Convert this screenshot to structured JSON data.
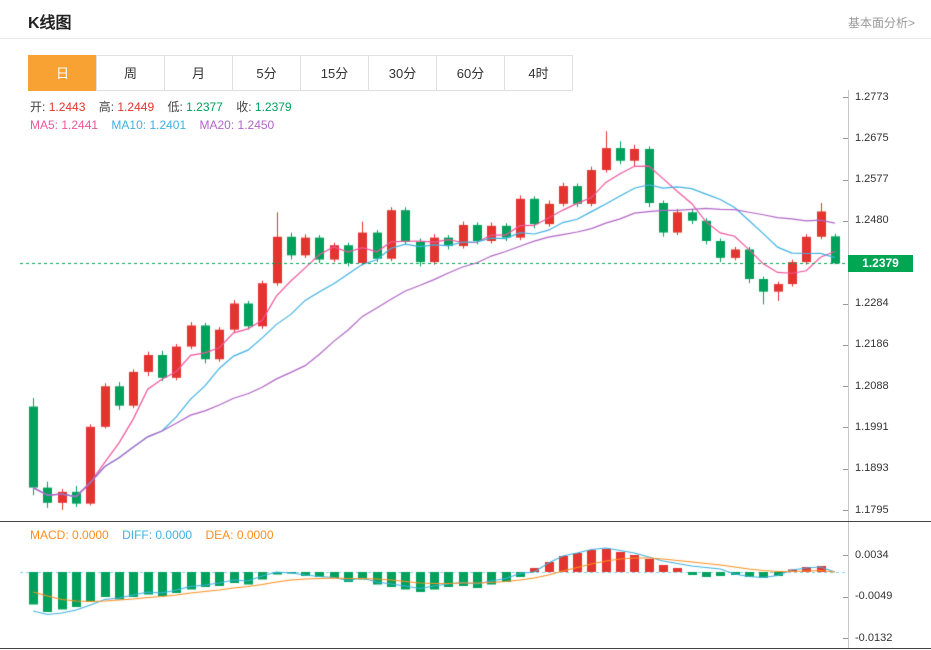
{
  "page": {
    "title": "K线图",
    "analysis_link": "基本面分析>"
  },
  "tabs": [
    {
      "label": "日",
      "active": true
    },
    {
      "label": "周",
      "active": false
    },
    {
      "label": "月",
      "active": false
    },
    {
      "label": "5分",
      "active": false
    },
    {
      "label": "15分",
      "active": false
    },
    {
      "label": "30分",
      "active": false
    },
    {
      "label": "60分",
      "active": false
    },
    {
      "label": "4时",
      "active": false
    }
  ],
  "overlay": {
    "open_label": "开:",
    "open_value": "1.2443",
    "high_label": "高:",
    "high_value": "1.2449",
    "low_label": "低:",
    "low_value": "1.2377",
    "close_label": "收:",
    "close_value": "1.2379",
    "ma5_label": "MA5:",
    "ma5_value": "1.2441",
    "ma10_label": "MA10:",
    "ma10_value": "1.2401",
    "ma20_label": "MA20:",
    "ma20_value": "1.2450"
  },
  "macd_overlay": {
    "macd_label": "MACD:",
    "macd_value": "0.0000",
    "diff_label": "DIFF:",
    "diff_value": "0.0000",
    "dea_label": "DEA:",
    "dea_value": "0.0000"
  },
  "price_badge": "1.2379",
  "colors": {
    "up_red": "#e3342f",
    "down_green": "#00a15c",
    "ma5_pink": "#f0559d",
    "ma10_blue": "#3fb1e3",
    "ma20_purple": "#b066c6",
    "macd_orange": "#ff8f1f",
    "diff_blue": "#3fb1e3",
    "badge_green": "#00a651",
    "tab_active_bg": "#f7a232",
    "zero_line_blue": "#7fd0ec"
  },
  "chart_data": {
    "type": "candlestick",
    "title": "K线图",
    "timeframe_selected": "日",
    "grid": false,
    "legend_position": "none",
    "price_axis_ticks": [
      "1.2773",
      "1.2675",
      "1.2577",
      "1.2480",
      "1.2284",
      "1.2186",
      "1.2088",
      "1.1991",
      "1.1893",
      "1.1795"
    ],
    "macd_axis_ticks": [
      "0.0034",
      "-0.0049",
      "-0.0132"
    ],
    "price_range": [
      1.1795,
      1.2773
    ],
    "current_price": 1.2379,
    "last_candle": {
      "open": 1.2443,
      "high": 1.2449,
      "low": 1.2377,
      "close": 1.2379
    },
    "ma_periods": [
      5,
      10,
      20
    ],
    "candles": [
      [
        1.204,
        1.206,
        1.183,
        1.1848
      ],
      [
        1.1848,
        1.1862,
        1.18,
        1.1812
      ],
      [
        1.1812,
        1.1845,
        1.1795,
        1.1838
      ],
      [
        1.1838,
        1.1852,
        1.1802,
        1.181
      ],
      [
        1.181,
        1.1998,
        1.1806,
        1.1992
      ],
      [
        1.1992,
        1.2095,
        1.1988,
        1.2088
      ],
      [
        1.2088,
        1.2098,
        1.2032,
        1.2042
      ],
      [
        1.2042,
        1.2128,
        1.2036,
        1.2122
      ],
      [
        1.2122,
        1.217,
        1.2112,
        1.2162
      ],
      [
        1.2162,
        1.2172,
        1.21,
        1.2108
      ],
      [
        1.2108,
        1.2188,
        1.2102,
        1.2182
      ],
      [
        1.2182,
        1.224,
        1.2176,
        1.2232
      ],
      [
        1.2232,
        1.2238,
        1.2142,
        1.2152
      ],
      [
        1.2152,
        1.2228,
        1.2146,
        1.2222
      ],
      [
        1.2222,
        1.2292,
        1.2216,
        1.2284
      ],
      [
        1.2284,
        1.229,
        1.2222,
        1.223
      ],
      [
        1.223,
        1.2338,
        1.2224,
        1.2332
      ],
      [
        1.2332,
        1.25,
        1.2326,
        1.2442
      ],
      [
        1.2442,
        1.2452,
        1.2388,
        1.2398
      ],
      [
        1.2398,
        1.2448,
        1.2392,
        1.244
      ],
      [
        1.244,
        1.2446,
        1.238,
        1.2388
      ],
      [
        1.2388,
        1.2428,
        1.2382,
        1.2422
      ],
      [
        1.2422,
        1.2428,
        1.2372,
        1.238
      ],
      [
        1.238,
        1.2478,
        1.2374,
        1.2452
      ],
      [
        1.2452,
        1.2458,
        1.2382,
        1.239
      ],
      [
        1.239,
        1.2512,
        1.2384,
        1.2505
      ],
      [
        1.2505,
        1.2512,
        1.2422,
        1.243
      ],
      [
        1.243,
        1.2438,
        1.2372,
        1.2382
      ],
      [
        1.2382,
        1.2448,
        1.2376,
        1.244
      ],
      [
        1.244,
        1.2446,
        1.2412,
        1.242
      ],
      [
        1.242,
        1.2478,
        1.2414,
        1.247
      ],
      [
        1.247,
        1.2476,
        1.2424,
        1.2432
      ],
      [
        1.2432,
        1.2476,
        1.2426,
        1.2468
      ],
      [
        1.2468,
        1.2474,
        1.2432,
        1.244
      ],
      [
        1.244,
        1.254,
        1.2434,
        1.2532
      ],
      [
        1.2532,
        1.2538,
        1.2462,
        1.2472
      ],
      [
        1.2472,
        1.2528,
        1.2466,
        1.252
      ],
      [
        1.252,
        1.257,
        1.2514,
        1.2562
      ],
      [
        1.2562,
        1.2568,
        1.2512,
        1.252
      ],
      [
        1.252,
        1.2608,
        1.2514,
        1.26
      ],
      [
        1.26,
        1.2692,
        1.2594,
        1.2652
      ],
      [
        1.2652,
        1.2668,
        1.2614,
        1.2622
      ],
      [
        1.2622,
        1.266,
        1.2608,
        1.265
      ],
      [
        1.265,
        1.2656,
        1.2512,
        1.2522
      ],
      [
        1.2522,
        1.2528,
        1.2442,
        1.2452
      ],
      [
        1.2452,
        1.2508,
        1.2446,
        1.25
      ],
      [
        1.25,
        1.2506,
        1.2472,
        1.248
      ],
      [
        1.248,
        1.2486,
        1.2424,
        1.2432
      ],
      [
        1.2432,
        1.2438,
        1.2382,
        1.2392
      ],
      [
        1.2392,
        1.2418,
        1.2386,
        1.2412
      ],
      [
        1.2412,
        1.2418,
        1.2332,
        1.2342
      ],
      [
        1.2342,
        1.2348,
        1.2282,
        1.2312
      ],
      [
        1.2312,
        1.2336,
        1.229,
        1.233
      ],
      [
        1.233,
        1.2388,
        1.2324,
        1.2382
      ],
      [
        1.2382,
        1.2448,
        1.2376,
        1.2442
      ],
      [
        1.2442,
        1.2522,
        1.2436,
        1.2502
      ],
      [
        1.2443,
        1.2449,
        1.2377,
        1.2379
      ]
    ],
    "macd": {
      "hist": [
        -0.0065,
        -0.008,
        -0.0075,
        -0.007,
        -0.006,
        -0.005,
        -0.0055,
        -0.005,
        -0.0045,
        -0.0048,
        -0.0042,
        -0.0035,
        -0.003,
        -0.0028,
        -0.0022,
        -0.0025,
        -0.0015,
        -0.0005,
        -0.0003,
        -0.0008,
        -0.001,
        -0.0012,
        -0.002,
        -0.0015,
        -0.0025,
        -0.003,
        -0.0035,
        -0.004,
        -0.0035,
        -0.003,
        -0.0028,
        -0.0032,
        -0.0025,
        -0.002,
        -0.001,
        0.0008,
        0.002,
        0.0032,
        0.0038,
        0.0044,
        0.0046,
        0.004,
        0.0034,
        0.0026,
        0.0014,
        0.0008,
        -0.0006,
        -0.001,
        -0.0008,
        -0.0006,
        -0.001,
        -0.0012,
        -0.0008,
        0.0005,
        0.001,
        0.0012,
        0.0
      ],
      "diff": [
        -0.0078,
        -0.0085,
        -0.0082,
        -0.0076,
        -0.0066,
        -0.0055,
        -0.0052,
        -0.0046,
        -0.004,
        -0.0042,
        -0.0036,
        -0.0029,
        -0.0026,
        -0.0022,
        -0.0016,
        -0.0018,
        -0.0008,
        0.0,
        -0.0002,
        -0.0006,
        -0.0009,
        -0.0011,
        -0.0017,
        -0.0012,
        -0.002,
        -0.0024,
        -0.0028,
        -0.0033,
        -0.0028,
        -0.0024,
        -0.0021,
        -0.0024,
        -0.0018,
        -0.0013,
        -0.0003,
        0.0,
        0.0018,
        0.0032,
        0.0038,
        0.0045,
        0.0048,
        0.0043,
        0.0038,
        0.003,
        0.0022,
        0.0017,
        0.0012,
        0.0009,
        0.0006,
        -0.0004,
        -0.0009,
        -0.0011,
        -0.0007,
        0.0004,
        0.0008,
        0.001,
        0.0
      ],
      "dea": [
        -0.004,
        -0.0048,
        -0.0055,
        -0.0058,
        -0.0059,
        -0.0058,
        -0.0056,
        -0.0054,
        -0.0051,
        -0.0049,
        -0.0046,
        -0.0042,
        -0.0039,
        -0.0036,
        -0.0032,
        -0.0029,
        -0.0025,
        -0.002,
        -0.0016,
        -0.0014,
        -0.0013,
        -0.0012,
        -0.0013,
        -0.0013,
        -0.0014,
        -0.0016,
        -0.0019,
        -0.0022,
        -0.0023,
        -0.0023,
        -0.0022,
        -0.0022,
        -0.0021,
        -0.0019,
        -0.0016,
        -0.0012,
        -0.0006,
        0.0002,
        0.0009,
        0.0016,
        0.0022,
        0.0026,
        0.0028,
        0.0028,
        0.0026,
        0.0023,
        0.002,
        0.0017,
        0.0014,
        0.001,
        0.0006,
        0.0003,
        0.0001,
        0.0001,
        0.0002,
        0.0003,
        0.0
      ]
    }
  }
}
